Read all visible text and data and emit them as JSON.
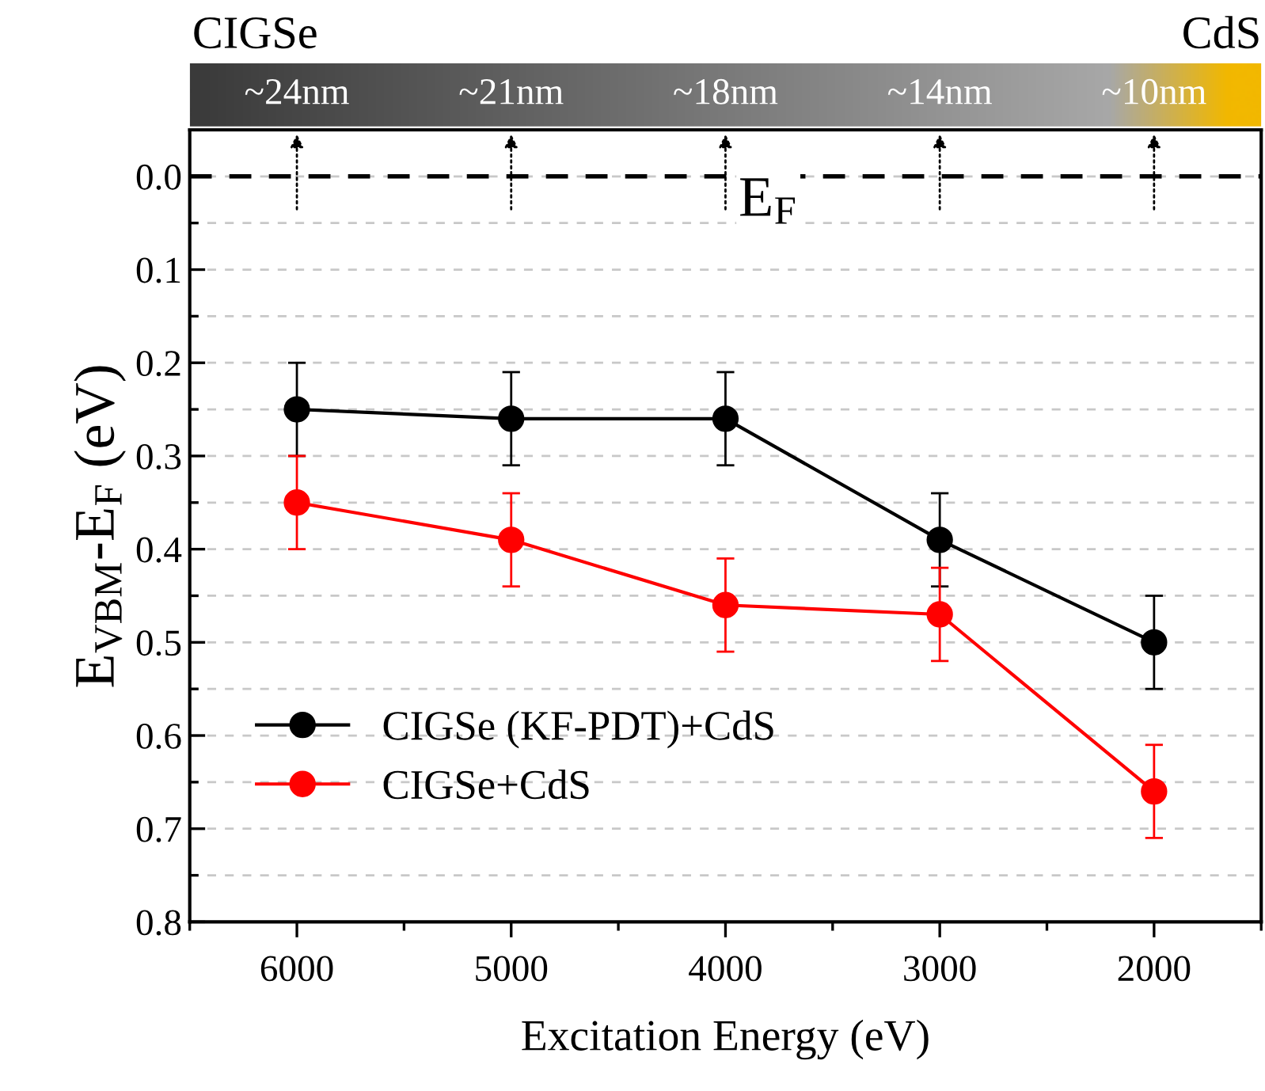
{
  "chart_data": {
    "type": "line",
    "xlabel": "Excitation Energy (eV)",
    "ylabel": "E$_{VBM}$-E$_{F}$ (eV)",
    "x": [
      6000,
      5000,
      4000,
      3000,
      2000
    ],
    "series": [
      {
        "name": "CIGSe (KF-PDT)+CdS",
        "color": "#000000",
        "values": [
          0.25,
          0.26,
          0.26,
          0.39,
          0.5
        ],
        "errors": [
          0.05,
          0.05,
          0.05,
          0.05,
          0.05
        ]
      },
      {
        "name": "CIGSe+CdS",
        "color": "#ff0000",
        "values": [
          0.35,
          0.39,
          0.46,
          0.47,
          0.66
        ],
        "errors": [
          0.05,
          0.05,
          0.05,
          0.05,
          0.05
        ]
      }
    ],
    "xlim": [
      6500,
      1500
    ],
    "xticks": [
      6000,
      5000,
      4000,
      3000,
      2000
    ],
    "ylim": [
      0.8,
      -0.05
    ],
    "yticks": [
      {
        "value": 0.0,
        "label": "0.0"
      },
      0.1,
      0.2,
      0.3,
      0.4,
      0.5,
      0.6,
      0.7,
      0.8
    ],
    "ref_lines": [
      {
        "axis": "y",
        "value": 0.0,
        "label": "E$_{F}$",
        "color": "#000000",
        "line_style": "dashed"
      }
    ],
    "annotations": [
      "CIGSe",
      "CdS",
      {
        "text": "~24nm",
        "x": 6000
      },
      {
        "text": "~21nm",
        "x": 5000
      },
      {
        "text": "~18nm",
        "x": 4000
      },
      {
        "text": "~14nm",
        "x": 3000
      },
      {
        "text": "~10nm",
        "x": 2000
      }
    ],
    "grid": "y",
    "legend": "bottom left",
    "marker": "circle",
    "line_style": "solid"
  }
}
